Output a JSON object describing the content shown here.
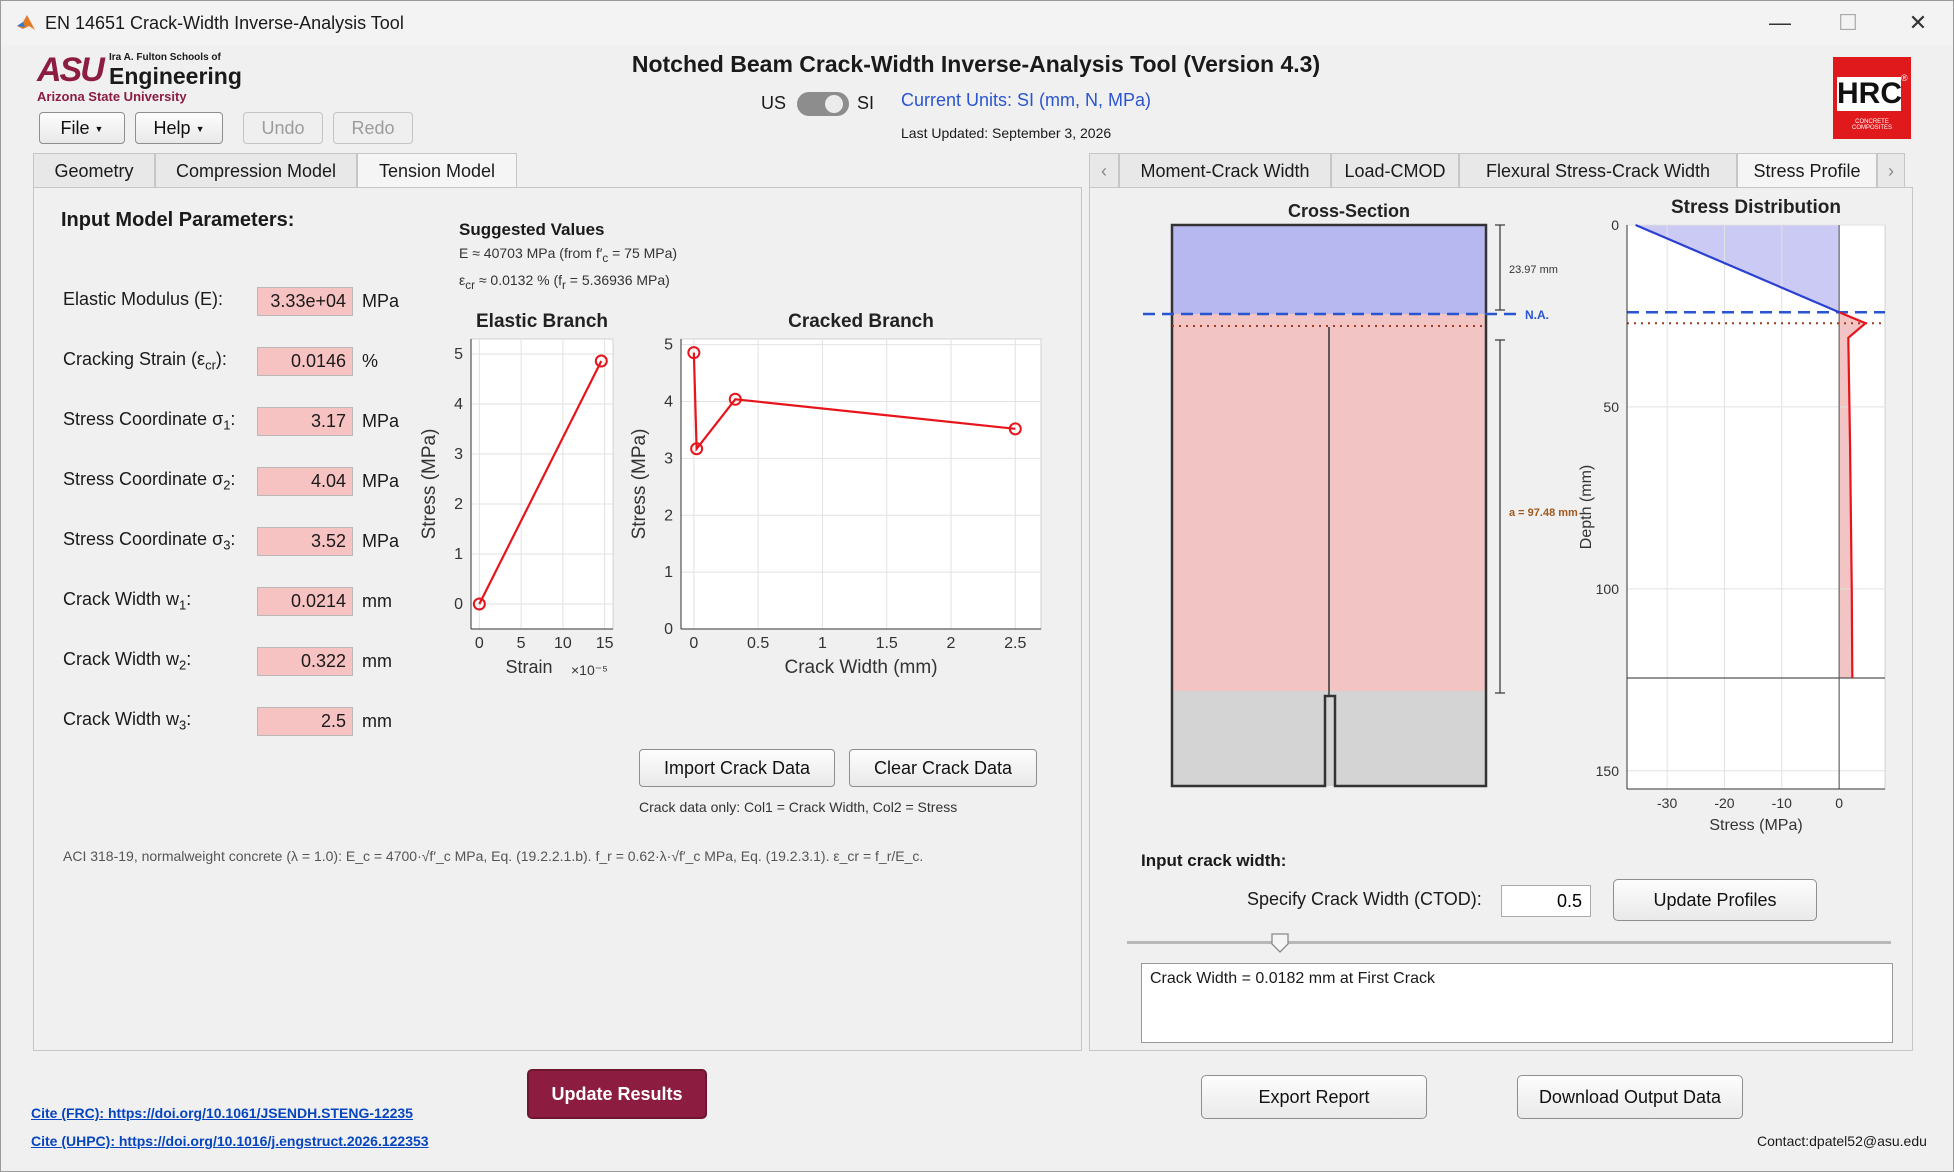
{
  "window": {
    "title": "EN 14651 Crack-Width Inverse-Analysis Tool",
    "min": "—",
    "max": "☐",
    "close": "✕"
  },
  "header": {
    "logo_small": "Ira A. Fulton Schools of",
    "logo_big": "Engineering",
    "logo_asu": "ASU",
    "logo_univ": "Arizona State University",
    "title": "Notched Beam Crack-Width Inverse-Analysis Tool (Version 4.3)",
    "unit_us": "US",
    "unit_si": "SI",
    "current_units": "Current Units: SI (mm, N, MPa)",
    "last_updated": "Last Updated: September 3, 2026",
    "hrc_logo": "HRC",
    "hrc_reg": "®",
    "hrc_sub": "CONCRETE COMPOSITES"
  },
  "toolbar": {
    "file": "File",
    "help": "Help",
    "dropdown_glyph": "▼",
    "undo": "Undo",
    "redo": "Redo"
  },
  "left_tabs": [
    "Geometry",
    "Compression Model",
    "Tension Model"
  ],
  "left_selected": 2,
  "params": {
    "heading": "Input Model Parameters:",
    "rows": [
      {
        "label": "Elastic Modulus (E):",
        "value": "3.33e+04",
        "unit": "MPa"
      },
      {
        "label": "Cracking Strain (ε",
        "sub": "cr",
        "label_end": "):",
        "value": "0.0146",
        "unit": "%"
      },
      {
        "label": "Stress Coordinate σ",
        "sub": "1",
        "label_end": ":",
        "value": "3.17",
        "unit": "MPa"
      },
      {
        "label": "Stress Coordinate σ",
        "sub": "2",
        "label_end": ":",
        "value": "4.04",
        "unit": "MPa"
      },
      {
        "label": "Stress Coordinate σ",
        "sub": "3",
        "label_end": ":",
        "value": "3.52",
        "unit": "MPa"
      },
      {
        "label": "Crack Width w",
        "sub": "1",
        "label_end": ":",
        "value": "0.0214",
        "unit": "mm"
      },
      {
        "label": "Crack Width w",
        "sub": "2",
        "label_end": ":",
        "value": "0.322",
        "unit": "mm"
      },
      {
        "label": "Crack Width w",
        "sub": "3",
        "label_end": ":",
        "value": "2.5",
        "unit": "mm"
      }
    ]
  },
  "suggested": {
    "heading": "Suggested Values",
    "line1a": "E ≈ 40703 MPa  (from f′",
    "line1sub": "c",
    "line1b": " = 75 MPa)",
    "line2a": "ε",
    "line2sub": "cr",
    "line2b": " ≈ 0.0132 %  (f",
    "line2sub2": "r",
    "line2c": " = 5.36936 MPa)"
  },
  "crack_buttons": {
    "import": "Import Crack Data",
    "clear": "Clear Crack Data",
    "note": "Crack data only: Col1 = Crack Width, Col2 = Stress"
  },
  "aci_note": "ACI 318-19, normalweight concrete (λ = 1.0): E_c = 4700·√f′_c MPa, Eq. (19.2.2.1.b). f_r = 0.62·λ·√f′_c MPa, Eq. (19.2.3.1). ε_cr = f_r/E_c.",
  "right_tabs": [
    "Moment-Crack Width",
    "Load-CMOD",
    "Flexural Stress-Crack Width",
    "Stress Profile"
  ],
  "right_selected": 3,
  "right_tab_arrows": {
    "left": "‹",
    "right": "›"
  },
  "cross_section": {
    "title": "Cross-Section",
    "dim_top": "23.97 mm",
    "na": "N.A.",
    "a_label": "a = 97.48 mm"
  },
  "crack_input": {
    "heading": "Input crack width:",
    "label": "Specify Crack Width (CTOD):",
    "value": "0.5",
    "update": "Update Profiles",
    "slider_fraction": 0.2,
    "output": "Crack Width = 0.0182 mm at First Crack"
  },
  "footer": {
    "update_results": "Update Results",
    "cite1": "Cite (FRC): https://doi.org/10.1061/JSENDH.STENG-12235",
    "cite2": "Cite (UHPC): https://doi.org/10.1016/j.engstruct.2026.122353",
    "export": "Export Report",
    "download": "Download Output Data",
    "contact": "Contact:dpatel52@asu.edu"
  },
  "colors": {
    "accent_red": "#8c1d40",
    "asu_maroon": "#8c1d40",
    "asu_gold": "#ffc627",
    "curve": "#e8141c",
    "compression_fill": "#b8b8f0",
    "tension_fill": "#f2c4c4",
    "notch_fill": "#d4d4d4",
    "na_line": "#2a55d0"
  },
  "chart_data": [
    {
      "type": "line",
      "title": "Elastic Branch",
      "xlabel": "Strain",
      "x_multiplier": "×10⁻⁵",
      "ylabel": "Stress (MPa)",
      "xlim": [
        -1,
        16
      ],
      "ylim": [
        -0.5,
        5.3
      ],
      "xticks": [
        "0",
        "5",
        "10",
        "15"
      ],
      "yticks": [
        "0",
        "1",
        "2",
        "3",
        "4",
        "5"
      ],
      "grid": true,
      "series": [
        {
          "x": [
            0,
            14.6
          ],
          "y": [
            0,
            4.86
          ]
        }
      ]
    },
    {
      "type": "line",
      "title": "Cracked Branch",
      "xlabel": "Crack Width (mm)",
      "ylabel": "Stress (MPa)",
      "xlim": [
        -0.1,
        2.7
      ],
      "ylim": [
        0,
        5.1
      ],
      "xticks": [
        "0",
        "0.5",
        "1",
        "1.5",
        "2",
        "2.5"
      ],
      "yticks": [
        "0",
        "1",
        "2",
        "3",
        "4",
        "5"
      ],
      "grid": true,
      "series": [
        {
          "x": [
            0,
            0.0214,
            0.322,
            2.5
          ],
          "y": [
            4.86,
            3.17,
            4.04,
            3.52
          ]
        }
      ]
    },
    {
      "type": "line",
      "title": "Stress Distribution",
      "xlabel": "Stress (MPa)",
      "ylabel": "Depth (mm)",
      "xlim": [
        -37,
        8
      ],
      "ylim": [
        0,
        155
      ],
      "xticks": [
        "-30",
        "-20",
        "-10",
        "0"
      ],
      "yticks": [
        "0",
        "50",
        "100",
        "150"
      ],
      "grid": true,
      "series": [
        {
          "x": [
            -35.5,
            0,
            4.6,
            1.6,
            1.9,
            2.2,
            2.3
          ],
          "y": [
            0,
            23.97,
            27,
            31,
            60,
            100,
            124.5
          ]
        }
      ]
    }
  ]
}
